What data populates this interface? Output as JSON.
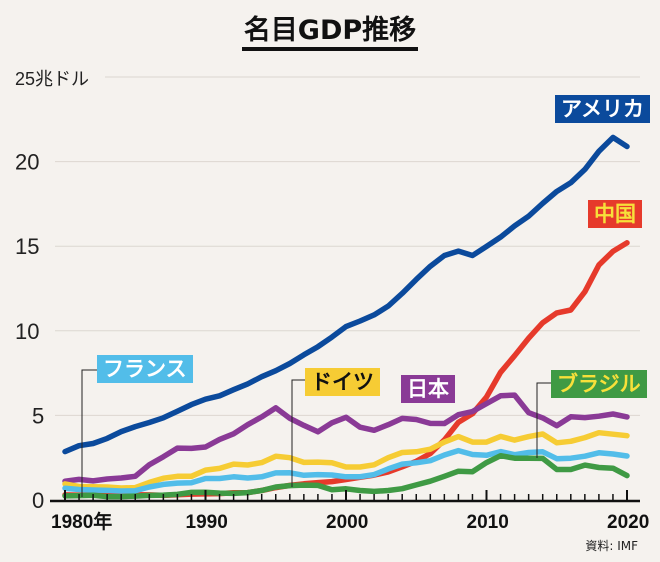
{
  "title": "名目GDP推移",
  "source": "資料: IMF",
  "chart_data": {
    "type": "line",
    "title": "名目GDP推移",
    "ylabel": "兆ドル",
    "ylim": [
      0,
      25
    ],
    "xlim": [
      1980,
      2020
    ],
    "yticks": [
      0,
      5,
      10,
      15,
      20,
      25
    ],
    "ytick_labels": [
      "0",
      "5",
      "10",
      "15",
      "20",
      "25兆ドル"
    ],
    "xticks": [
      1980,
      1990,
      2000,
      2010,
      2020
    ],
    "xtick_labels": [
      "1980年",
      "1990",
      "2000",
      "2010",
      "2020"
    ],
    "grid": true,
    "legend": "inline labels",
    "x": [
      1980,
      1981,
      1982,
      1983,
      1984,
      1985,
      1986,
      1987,
      1988,
      1989,
      1990,
      1991,
      1992,
      1993,
      1994,
      1995,
      1996,
      1997,
      1998,
      1999,
      2000,
      2001,
      2002,
      2003,
      2004,
      2005,
      2006,
      2007,
      2008,
      2009,
      2010,
      2011,
      2012,
      2013,
      2014,
      2015,
      2016,
      2017,
      2018,
      2019,
      2020
    ],
    "series": [
      {
        "name": "アメリカ",
        "color": "#0b4a9c",
        "label_text_color": "#ffffff",
        "values": [
          2.86,
          3.21,
          3.34,
          3.64,
          4.04,
          4.34,
          4.58,
          4.86,
          5.24,
          5.64,
          5.96,
          6.16,
          6.52,
          6.86,
          7.29,
          7.64,
          8.07,
          8.58,
          9.06,
          9.63,
          10.25,
          10.58,
          10.94,
          11.46,
          12.21,
          13.04,
          13.81,
          14.45,
          14.71,
          14.45,
          14.99,
          15.54,
          16.2,
          16.78,
          17.53,
          18.24,
          18.75,
          19.54,
          20.61,
          21.43,
          20.89
        ]
      },
      {
        "name": "中国",
        "color": "#e63a2b",
        "label_text_color": "#f7e03a",
        "values": [
          0.3,
          0.29,
          0.28,
          0.3,
          0.31,
          0.31,
          0.3,
          0.27,
          0.31,
          0.35,
          0.36,
          0.38,
          0.43,
          0.44,
          0.56,
          0.73,
          0.86,
          0.96,
          1.03,
          1.09,
          1.21,
          1.34,
          1.47,
          1.66,
          1.96,
          2.29,
          2.75,
          3.55,
          4.59,
          5.1,
          6.09,
          7.55,
          8.53,
          9.57,
          10.48,
          11.06,
          11.23,
          12.31,
          13.89,
          14.7,
          15.2
        ]
      },
      {
        "name": "日本",
        "color": "#8a3a96",
        "label_text_color": "#ffffff",
        "values": [
          1.11,
          1.22,
          1.13,
          1.24,
          1.3,
          1.4,
          2.08,
          2.56,
          3.07,
          3.05,
          3.13,
          3.58,
          3.91,
          4.45,
          4.91,
          5.45,
          4.83,
          4.41,
          4.03,
          4.56,
          4.89,
          4.3,
          4.12,
          4.45,
          4.82,
          4.76,
          4.53,
          4.52,
          5.04,
          5.23,
          5.7,
          6.16,
          6.2,
          5.16,
          4.85,
          4.39,
          4.92,
          4.87,
          4.95,
          5.08,
          4.91
        ]
      },
      {
        "name": "ドイツ",
        "color": "#f6cc34",
        "label_text_color": "#111111",
        "values": [
          0.95,
          0.8,
          0.78,
          0.77,
          0.71,
          0.73,
          1.04,
          1.29,
          1.4,
          1.4,
          1.77,
          1.87,
          2.12,
          2.07,
          2.21,
          2.59,
          2.5,
          2.22,
          2.24,
          2.2,
          1.95,
          1.95,
          2.08,
          2.5,
          2.81,
          2.85,
          3.0,
          3.43,
          3.75,
          3.42,
          3.42,
          3.76,
          3.54,
          3.75,
          3.9,
          3.38,
          3.47,
          3.69,
          3.98,
          3.89,
          3.8
        ]
      },
      {
        "name": "フランス",
        "color": "#52bde9",
        "label_text_color": "#ffffff",
        "values": [
          0.7,
          0.62,
          0.59,
          0.57,
          0.53,
          0.55,
          0.77,
          0.92,
          1.0,
          1.02,
          1.27,
          1.27,
          1.37,
          1.3,
          1.37,
          1.6,
          1.61,
          1.46,
          1.5,
          1.48,
          1.37,
          1.38,
          1.5,
          1.84,
          2.12,
          2.2,
          2.32,
          2.66,
          2.92,
          2.69,
          2.64,
          2.86,
          2.68,
          2.81,
          2.85,
          2.44,
          2.47,
          2.59,
          2.79,
          2.72,
          2.6
        ]
      },
      {
        "name": "ブラジル",
        "color": "#3f9a44",
        "label_text_color": "#f7e03a",
        "values": [
          0.24,
          0.26,
          0.28,
          0.2,
          0.2,
          0.23,
          0.27,
          0.29,
          0.33,
          0.45,
          0.46,
          0.41,
          0.39,
          0.44,
          0.56,
          0.77,
          0.85,
          0.88,
          0.86,
          0.6,
          0.66,
          0.56,
          0.51,
          0.56,
          0.67,
          0.89,
          1.11,
          1.4,
          1.7,
          1.67,
          2.21,
          2.62,
          2.47,
          2.47,
          2.46,
          1.8,
          1.8,
          2.06,
          1.92,
          1.88,
          1.44
        ]
      }
    ]
  }
}
